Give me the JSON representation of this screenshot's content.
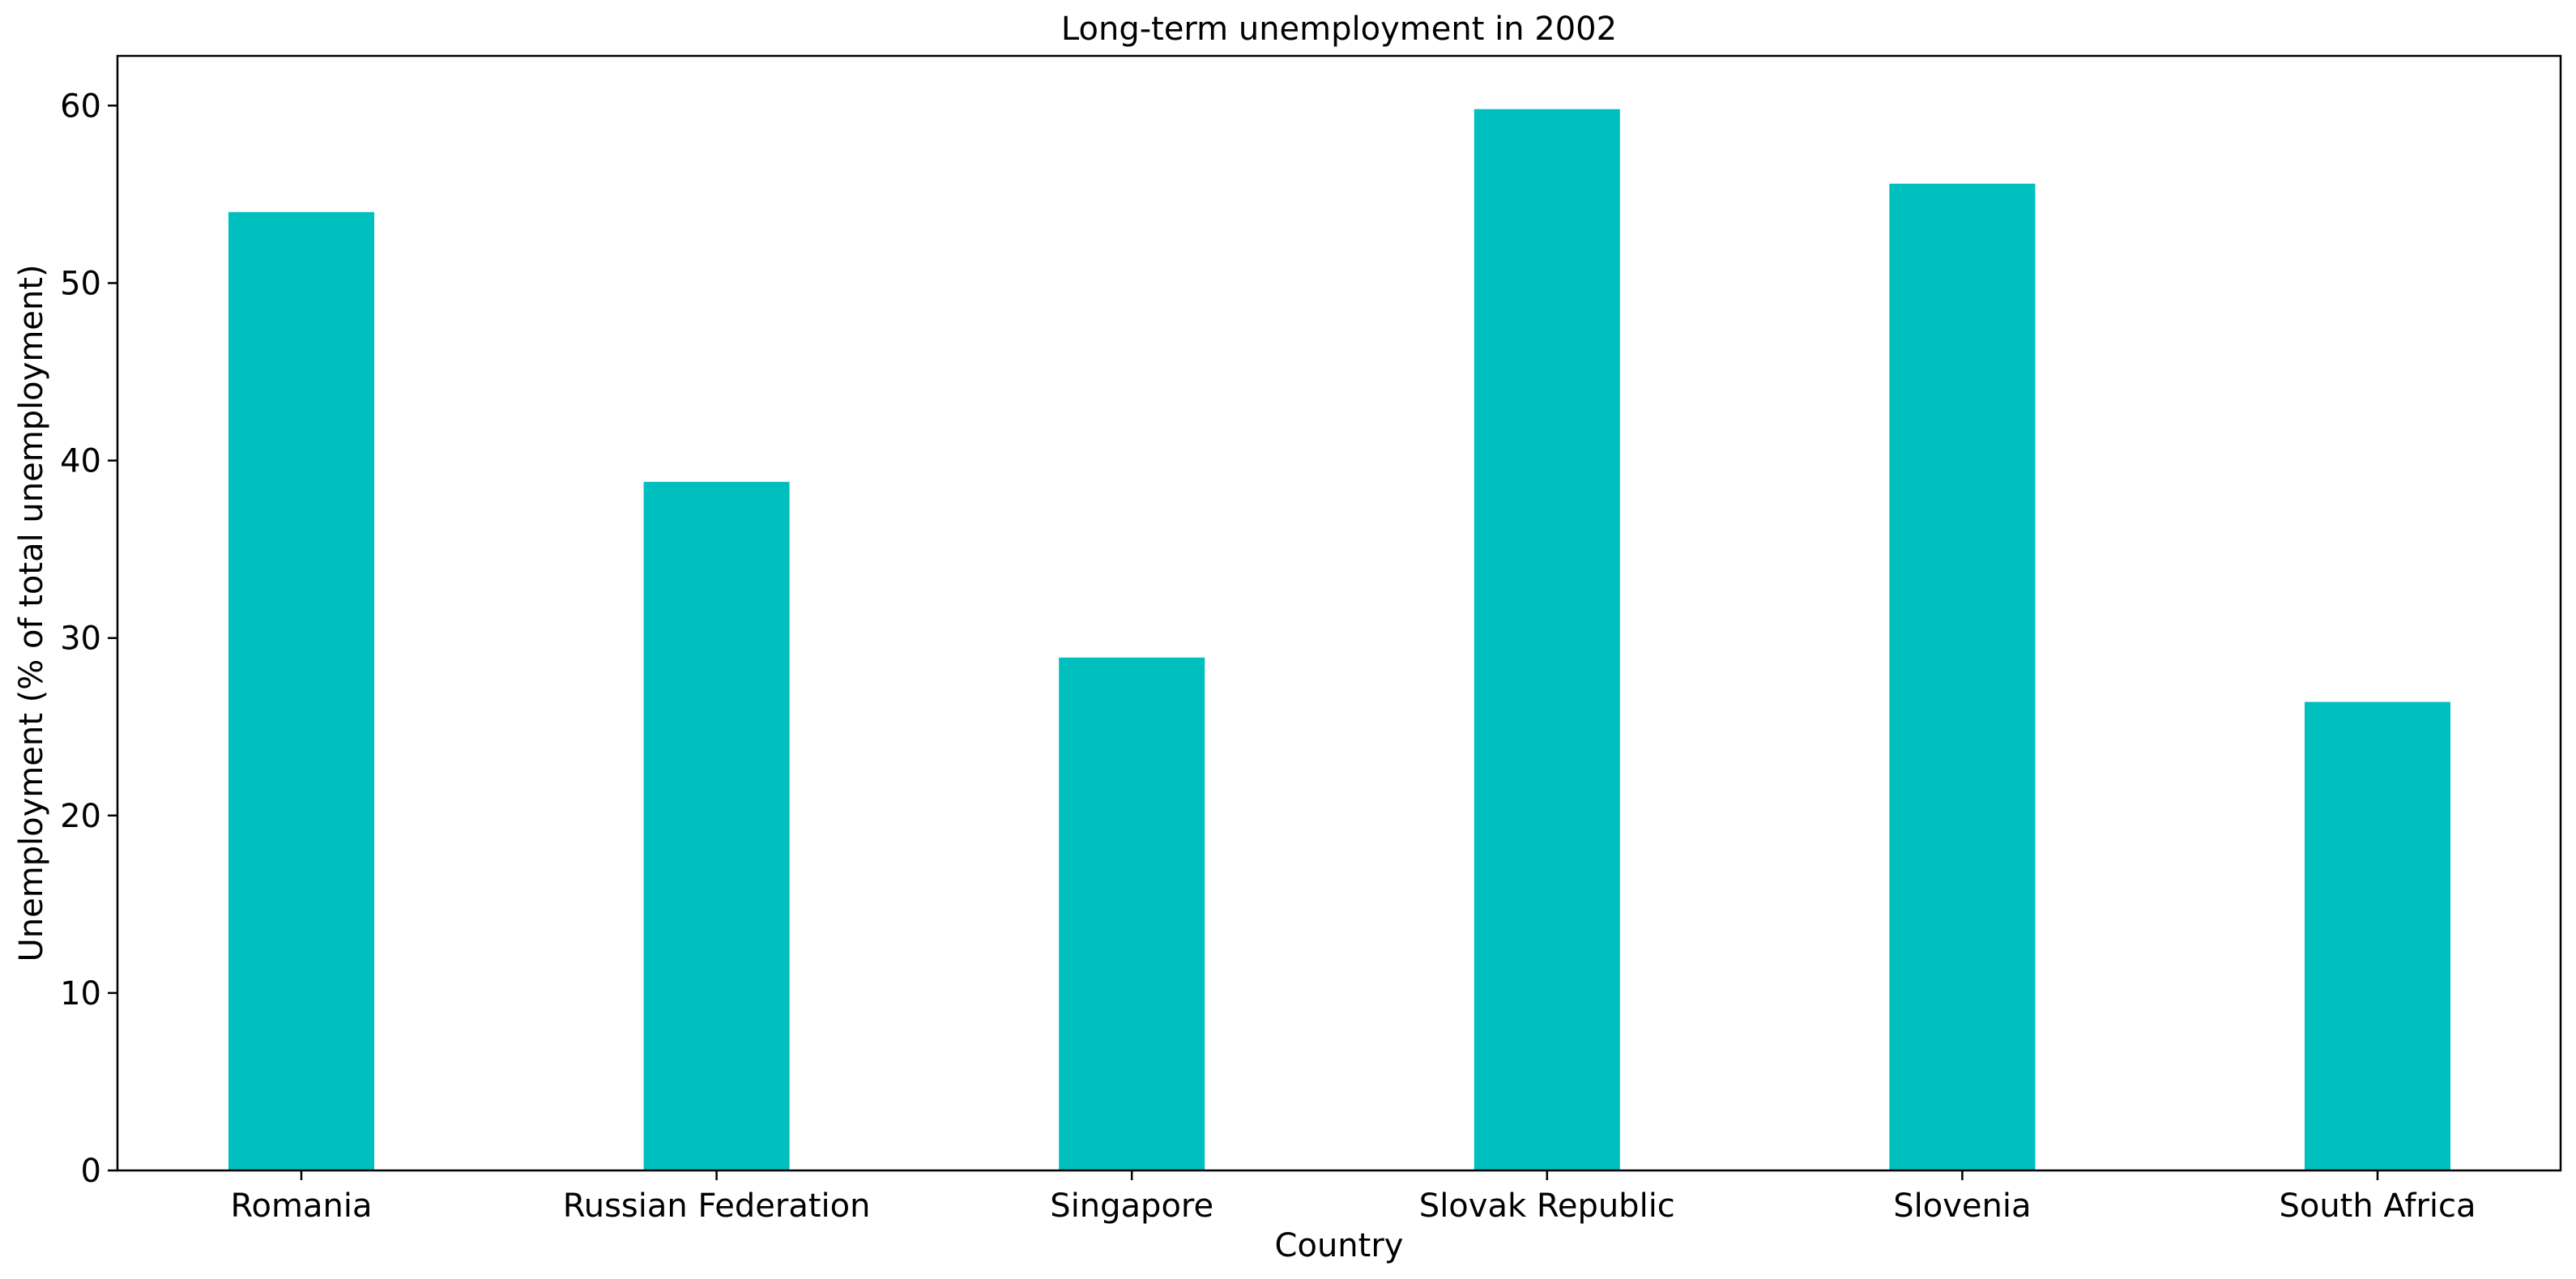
{
  "chart_data": {
    "type": "bar",
    "title": "Long-term unemployment in 2002",
    "xlabel": "Country",
    "ylabel": "Unemployment (% of total unemployment)",
    "categories": [
      "Romania",
      "Russian Federation",
      "Singapore",
      "Slovak Republic",
      "Slovenia",
      "South Africa"
    ],
    "values": [
      54.0,
      38.8,
      28.9,
      59.8,
      55.6,
      26.4
    ],
    "ylim": [
      0,
      62.8
    ],
    "yticks": [
      0,
      10,
      20,
      30,
      40,
      50,
      60
    ],
    "bar_color": "#00bfbf",
    "grid": false,
    "legend": "none"
  }
}
